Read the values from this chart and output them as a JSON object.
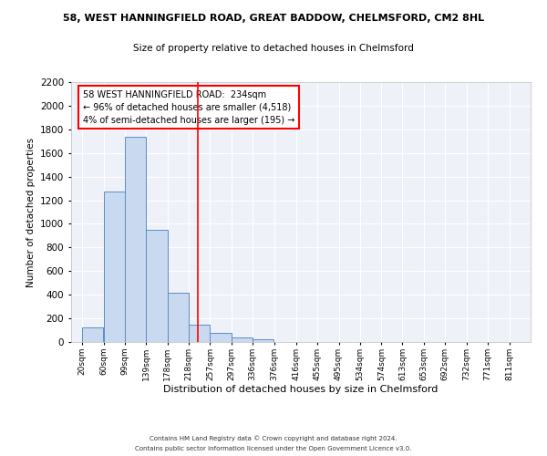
{
  "title_line1": "58, WEST HANNINGFIELD ROAD, GREAT BADDOW, CHELMSFORD, CM2 8HL",
  "title_line2": "Size of property relative to detached houses in Chelmsford",
  "xlabel": "Distribution of detached houses by size in Chelmsford",
  "ylabel": "Number of detached properties",
  "bar_left_edges": [
    20,
    60,
    99,
    139,
    178,
    218,
    257,
    297,
    336,
    376
  ],
  "bar_widths": [
    39,
    39,
    39,
    39,
    39,
    39,
    39,
    39,
    39,
    39
  ],
  "bar_heights": [
    120,
    1270,
    1740,
    950,
    415,
    150,
    75,
    35,
    20,
    0
  ],
  "bar_color": "#c9d9f0",
  "bar_edge_color": "#5b8ec4",
  "x_tick_labels": [
    "20sqm",
    "60sqm",
    "99sqm",
    "139sqm",
    "178sqm",
    "218sqm",
    "257sqm",
    "297sqm",
    "336sqm",
    "376sqm",
    "416sqm",
    "455sqm",
    "495sqm",
    "534sqm",
    "574sqm",
    "613sqm",
    "653sqm",
    "692sqm",
    "732sqm",
    "771sqm",
    "811sqm"
  ],
  "x_tick_positions": [
    20,
    60,
    99,
    139,
    178,
    218,
    257,
    297,
    336,
    376,
    416,
    455,
    495,
    534,
    574,
    613,
    653,
    692,
    732,
    771,
    811
  ],
  "ylim": [
    0,
    2200
  ],
  "xlim": [
    0,
    850
  ],
  "yticks": [
    0,
    200,
    400,
    600,
    800,
    1000,
    1200,
    1400,
    1600,
    1800,
    2000,
    2200
  ],
  "red_line_x": 234,
  "annotation_title": "58 WEST HANNINGFIELD ROAD:  234sqm",
  "annotation_line2": "← 96% of detached houses are smaller (4,518)",
  "annotation_line3": "4% of semi-detached houses are larger (195) →",
  "footer_line1": "Contains HM Land Registry data © Crown copyright and database right 2024.",
  "footer_line2": "Contains public sector information licensed under the Open Government Licence v3.0.",
  "background_color": "#eef2f8",
  "grid_color": "#ffffff",
  "fig_bg_color": "#ffffff"
}
